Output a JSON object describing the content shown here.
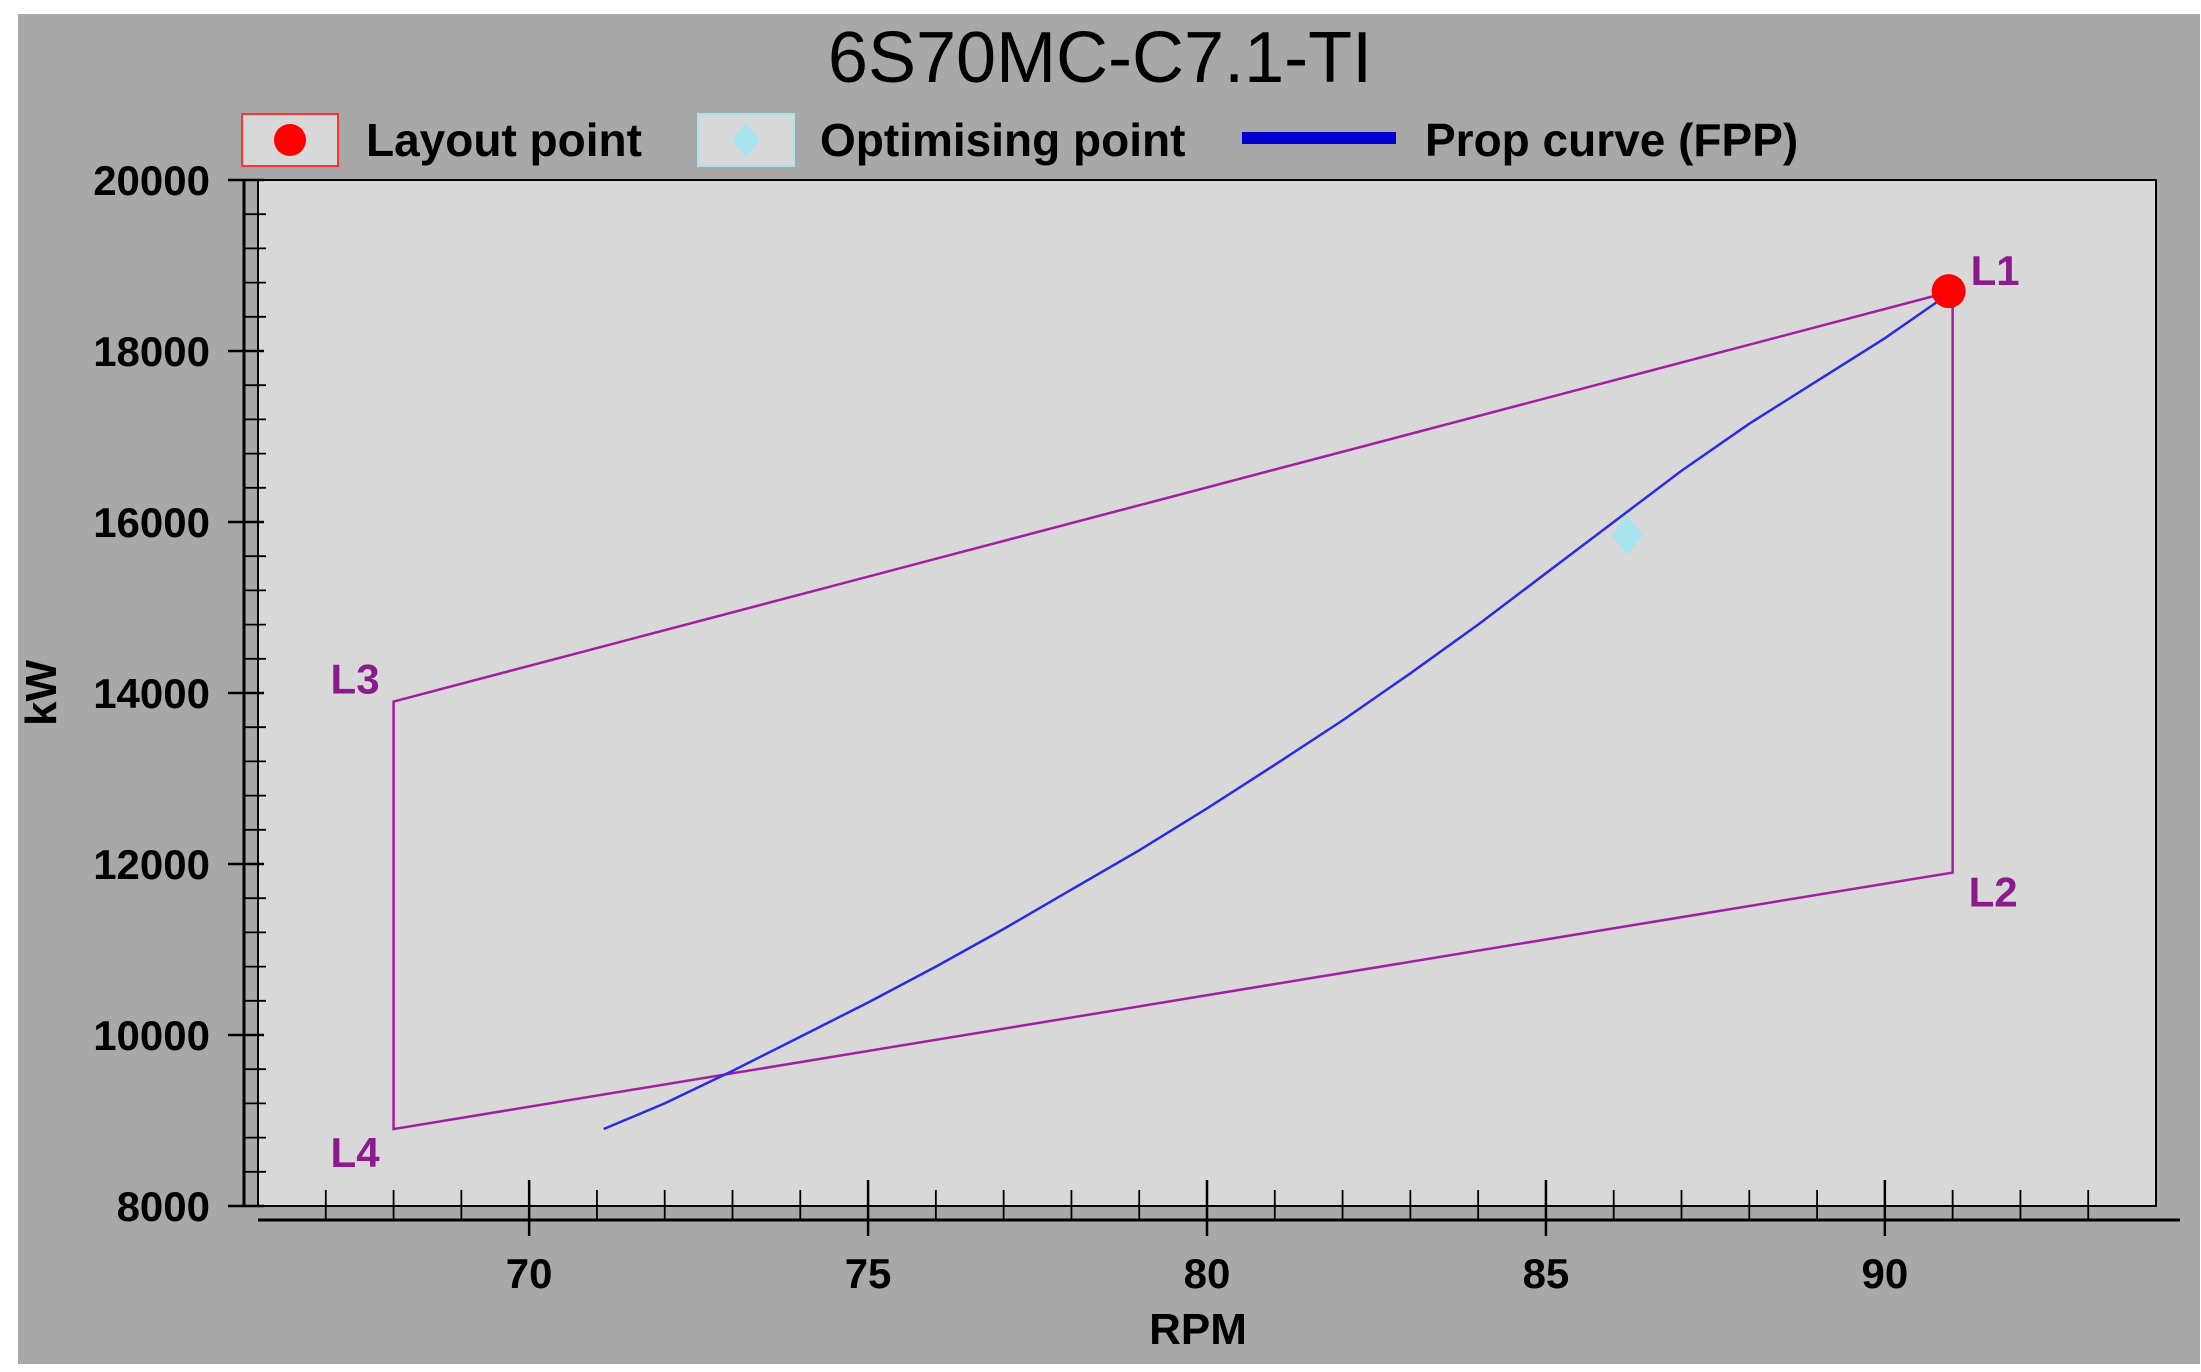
{
  "colors": {
    "background": "#a8a8a8",
    "plot_area": "#d8d8d8",
    "layout_diagram": "#a020a0",
    "prop_curve": "#2a2ae8",
    "layout_point": "#ff0000",
    "optimising_point": "#a8e4ee",
    "corner_labels": "#8b1a8b"
  },
  "chart_data": {
    "type": "line",
    "title": "6S70MC-C7.1-TI",
    "xlabel": "RPM",
    "ylabel": "kW",
    "xlim": [
      66,
      94
    ],
    "ylim": [
      8000,
      20000
    ],
    "x_ticks": [
      70,
      75,
      80,
      85,
      90
    ],
    "y_ticks": [
      8000,
      10000,
      12000,
      14000,
      16000,
      18000,
      20000
    ],
    "legend": {
      "placement": "top",
      "entries": [
        {
          "label": "Layout point",
          "marker": "circle",
          "color": "#ff0000"
        },
        {
          "label": "Optimising point",
          "marker": "diamond",
          "color": "#a8e4ee"
        },
        {
          "label": "Prop curve (FPP)",
          "marker": "line",
          "color": "#0000cc"
        }
      ]
    },
    "layout_diagram": {
      "points": [
        {
          "label": "L1",
          "x": 91,
          "y": 18700
        },
        {
          "label": "L2",
          "x": 91,
          "y": 11900
        },
        {
          "label": "L4",
          "x": 68,
          "y": 8900
        },
        {
          "label": "L3",
          "x": 68,
          "y": 13900
        }
      ]
    },
    "series": [
      {
        "name": "Prop curve (FPP)",
        "x": [
          71.1,
          72,
          73,
          74,
          75,
          76,
          77,
          78,
          79,
          80,
          81,
          82,
          83,
          84,
          85,
          86,
          87,
          88,
          89,
          90,
          91
        ],
        "y": [
          8900,
          9200,
          9580,
          9980,
          10380,
          10800,
          11240,
          11700,
          12160,
          12650,
          13160,
          13680,
          14230,
          14800,
          15400,
          16000,
          16600,
          17150,
          17650,
          18150,
          18700
        ]
      }
    ],
    "layout_point": {
      "x": 91,
      "y": 18700
    },
    "optimising_point": {
      "x": 86.2,
      "y": 15850
    }
  }
}
